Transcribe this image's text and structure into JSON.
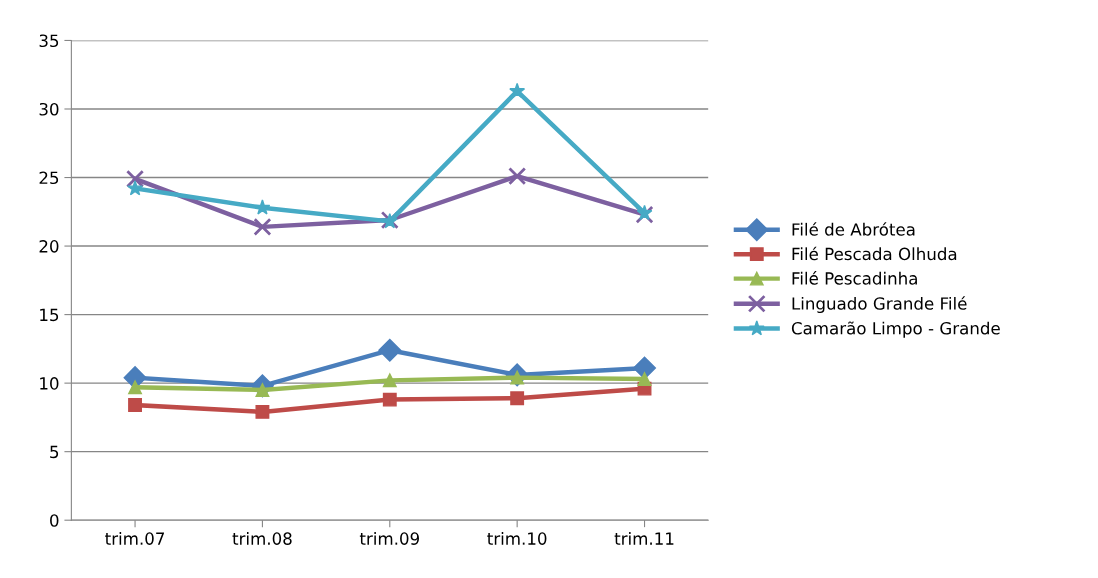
{
  "chart_data": {
    "type": "line",
    "categories": [
      "trim.07",
      "trim.08",
      "trim.09",
      "trim.10",
      "trim.11"
    ],
    "ylim": [
      0,
      35
    ],
    "yticks": [
      0,
      5,
      10,
      15,
      20,
      25,
      30,
      35
    ],
    "grid": "y",
    "legend": "right",
    "series": [
      {
        "name": "Filé de Abrótea",
        "color": "#4a7ebb",
        "marker": "diamond",
        "values": [
          10.4,
          9.8,
          12.4,
          10.6,
          11.1
        ]
      },
      {
        "name": "Filé Pescada Olhuda",
        "color": "#be4b48",
        "marker": "square",
        "values": [
          8.4,
          7.9,
          8.8,
          8.9,
          9.6
        ]
      },
      {
        "name": "Filé Pescadinha",
        "color": "#98b954",
        "marker": "triangle",
        "values": [
          9.7,
          9.5,
          10.2,
          10.4,
          10.3
        ]
      },
      {
        "name": "Linguado Grande Filé",
        "color": "#7d60a0",
        "marker": "cross",
        "values": [
          24.9,
          21.4,
          21.9,
          25.1,
          22.3
        ]
      },
      {
        "name": "Camarão Limpo - Grande",
        "color": "#46aac5",
        "marker": "star",
        "values": [
          24.2,
          22.8,
          21.8,
          31.3,
          22.4
        ]
      }
    ]
  }
}
